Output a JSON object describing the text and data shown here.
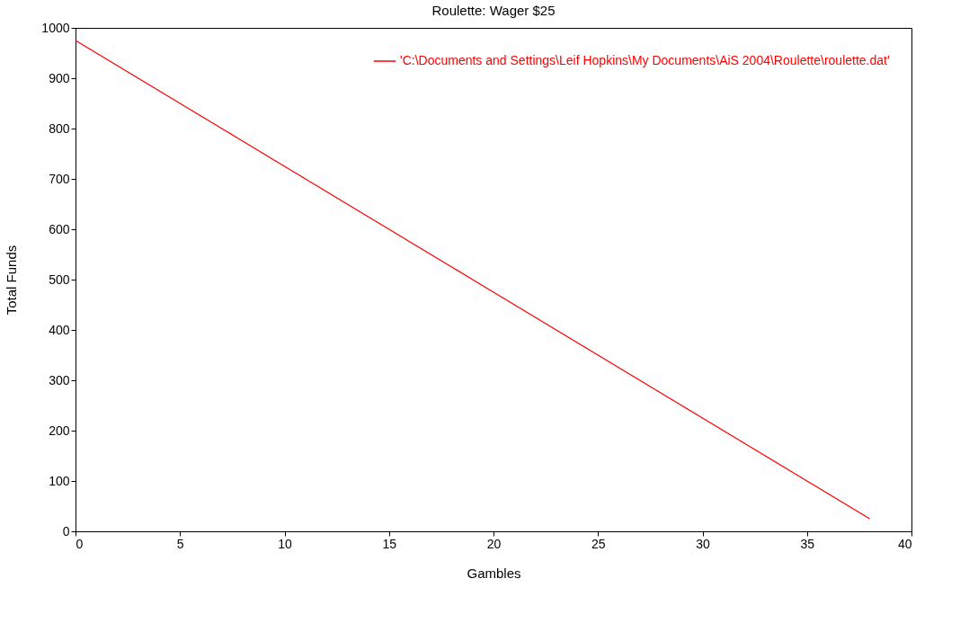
{
  "chart_data": {
    "type": "line",
    "title": "Roulette: Wager $25",
    "xlabel": "Gambles",
    "ylabel": "Total Funds",
    "x": [
      0,
      1,
      2,
      3,
      4,
      5,
      6,
      7,
      8,
      9,
      10,
      11,
      12,
      13,
      14,
      15,
      16,
      17,
      18,
      19,
      20,
      21,
      22,
      23,
      24,
      25,
      26,
      27,
      28,
      29,
      30,
      31,
      32,
      33,
      34,
      35,
      36,
      37,
      38
    ],
    "series": [
      {
        "name": "'C:\\Documents and Settings\\Leif Hopkins\\My Documents\\AiS 2004\\Roulette\\roulette.dat'",
        "color": "#ff0000",
        "values": [
          975,
          950,
          925,
          900,
          875,
          850,
          825,
          800,
          775,
          750,
          725,
          700,
          675,
          650,
          625,
          600,
          575,
          550,
          525,
          500,
          475,
          450,
          425,
          400,
          375,
          350,
          325,
          300,
          275,
          250,
          225,
          200,
          175,
          150,
          125,
          100,
          75,
          50,
          25
        ]
      }
    ],
    "xlim": [
      0,
      40
    ],
    "xticks": [
      0,
      5,
      10,
      15,
      20,
      25,
      30,
      35,
      40
    ],
    "ylim": [
      0,
      1000
    ],
    "yticks": [
      0,
      100,
      200,
      300,
      400,
      500,
      600,
      700,
      800,
      900,
      1000
    ],
    "grid": false,
    "legend": "top right",
    "marker": "none",
    "line_style": "solid"
  }
}
